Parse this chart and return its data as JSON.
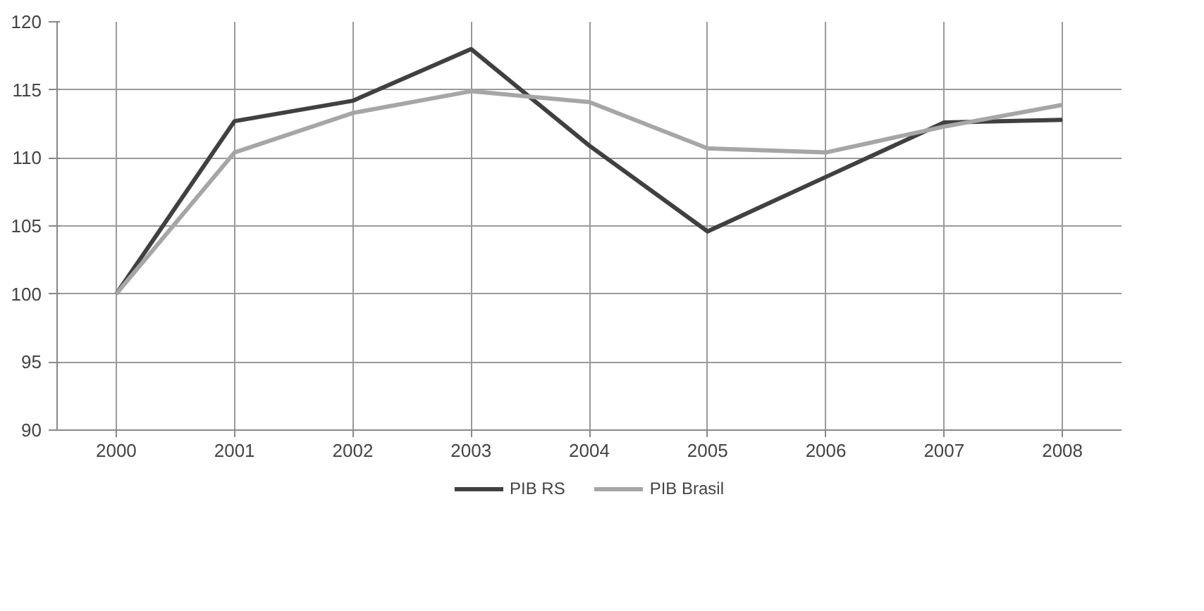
{
  "chart_data": {
    "type": "line",
    "categories": [
      "2000",
      "2001",
      "2002",
      "2003",
      "2004",
      "2005",
      "2006",
      "2007",
      "2008"
    ],
    "series": [
      {
        "name": "PIB RS",
        "color": "#404040",
        "values": [
          100,
          112.7,
          114.2,
          118,
          110.9,
          104.6,
          108.6,
          112.6,
          112.8
        ]
      },
      {
        "name": "PIB Brasil",
        "color": "#a6a6a6",
        "values": [
          100,
          110.4,
          113.3,
          114.9,
          114.1,
          110.7,
          110.4,
          112.3,
          113.9
        ]
      }
    ],
    "ylim": [
      90,
      120
    ],
    "yticks": [
      90,
      95,
      100,
      105,
      110,
      115,
      120
    ],
    "grid": true,
    "legend": "bottom",
    "marker": "none",
    "line_style": "solid"
  }
}
